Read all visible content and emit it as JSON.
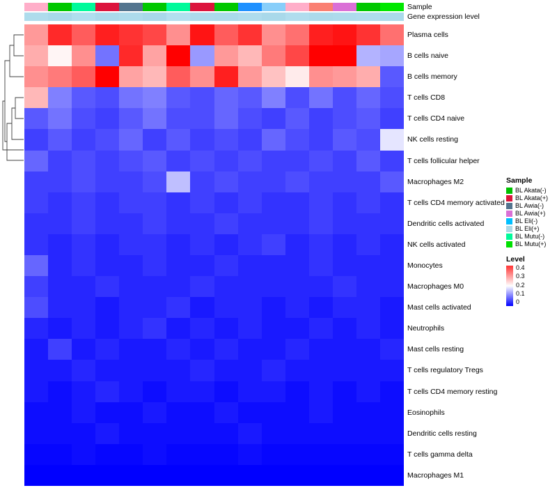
{
  "annotations": {
    "sample_label": "Sample",
    "expression_label": "Gene expression level"
  },
  "legends": {
    "sample": {
      "title": "Sample",
      "items": [
        {
          "label": "BL Akata(-)",
          "color": "#00C000"
        },
        {
          "label": "BL Akata(+)",
          "color": "#DC143C"
        },
        {
          "label": "BL Awia(-)",
          "color": "#53748E"
        },
        {
          "label": "BL Awia(+)",
          "color": "#DA70D6"
        },
        {
          "label": "BL Eli(-)",
          "color": "#00BFFF"
        },
        {
          "label": "BL Eli(+)",
          "color": "#ADD8E6"
        },
        {
          "label": "BL Mutu(-)",
          "color": "#00FA9A"
        },
        {
          "label": "BL Mutu(+)",
          "color": "#00E000"
        }
      ]
    },
    "level": {
      "title": "Level",
      "ticks": [
        "0.4",
        "0.3",
        "0.2",
        "0.1",
        "0"
      ],
      "max": 0.4,
      "min": 0
    }
  },
  "chart_data": {
    "type": "heatmap",
    "title": "",
    "legend_position": "right",
    "n_columns": 16,
    "rows": [
      "Plasma cells",
      "B cells naive",
      "B cells memory",
      "T cells CD8",
      "T cells CD4 naive",
      "NK cells resting",
      "T cells follicular helper",
      "Macrophages M2",
      "T cells CD4 memory activated",
      "Dendritic cells activated",
      "NK cells activated",
      "Monocytes",
      "Macrophages M0",
      "Mast cells activated",
      "Neutrophils",
      "Mast cells resting",
      "T cells regulatory Tregs",
      "T cells CD4 memory resting",
      "Eosinophils",
      "Dendritic cells resting",
      "T cells gamma delta",
      "Macrophages M1"
    ],
    "column_sample_colors": [
      "#FFAEC9",
      "#00C800",
      "#00FA9A",
      "#DC143C",
      "#53748E",
      "#00C800",
      "#00FA9A",
      "#DC143C",
      "#00C800",
      "#1E90FF",
      "#87CEFA",
      "#FFAEC9",
      "#FA8072",
      "#DA70D6",
      "#00C800",
      "#00E800"
    ],
    "column_expression_colors": [
      "#AEDCEC",
      "#A8D9EA",
      "#B0DEEE",
      "#AAD9EB",
      "#ADDBEC",
      "#A8D8EA",
      "#B2DFEF",
      "#ACDAEB",
      "#AADAEB",
      "#AEDCED",
      "#A9D9EA",
      "#B0DDEE",
      "#ABDAEB",
      "#ADDBEC",
      "#AFDCED",
      "#AADAEB"
    ],
    "color_scale": {
      "min_value": 0,
      "mid_value": 0.2,
      "max_value": 0.45,
      "min_color": "#0000FF",
      "mid_color": "#FFFFFF",
      "max_color": "#FF0000"
    },
    "values": [
      [
        0.3,
        0.41,
        0.36,
        0.42,
        0.4,
        0.38,
        0.31,
        0.43,
        0.36,
        0.4,
        0.31,
        0.34,
        0.42,
        0.43,
        0.4,
        0.34
      ],
      [
        0.28,
        0.21,
        0.31,
        0.09,
        0.41,
        0.29,
        0.47,
        0.12,
        0.3,
        0.27,
        0.33,
        0.38,
        0.47,
        0.47,
        0.14,
        0.13
      ],
      [
        0.31,
        0.33,
        0.36,
        0.46,
        0.29,
        0.27,
        0.36,
        0.31,
        0.42,
        0.3,
        0.26,
        0.22,
        0.31,
        0.3,
        0.28,
        0.07
      ],
      [
        0.27,
        0.1,
        0.07,
        0.06,
        0.09,
        0.1,
        0.07,
        0.06,
        0.08,
        0.07,
        0.1,
        0.06,
        0.09,
        0.06,
        0.08,
        0.06
      ],
      [
        0.07,
        0.09,
        0.06,
        0.05,
        0.07,
        0.09,
        0.06,
        0.06,
        0.08,
        0.06,
        0.05,
        0.07,
        0.05,
        0.06,
        0.07,
        0.05
      ],
      [
        0.05,
        0.07,
        0.05,
        0.06,
        0.08,
        0.05,
        0.07,
        0.05,
        0.06,
        0.05,
        0.08,
        0.06,
        0.05,
        0.07,
        0.06,
        0.18
      ],
      [
        0.08,
        0.05,
        0.06,
        0.05,
        0.06,
        0.07,
        0.05,
        0.06,
        0.05,
        0.06,
        0.05,
        0.05,
        0.06,
        0.05,
        0.07,
        0.05
      ],
      [
        0.05,
        0.05,
        0.06,
        0.05,
        0.05,
        0.06,
        0.15,
        0.05,
        0.06,
        0.05,
        0.05,
        0.06,
        0.05,
        0.05,
        0.05,
        0.07
      ],
      [
        0.05,
        0.04,
        0.05,
        0.04,
        0.05,
        0.05,
        0.04,
        0.05,
        0.04,
        0.05,
        0.04,
        0.04,
        0.05,
        0.04,
        0.05,
        0.04
      ],
      [
        0.04,
        0.04,
        0.05,
        0.04,
        0.04,
        0.05,
        0.04,
        0.04,
        0.05,
        0.04,
        0.04,
        0.04,
        0.05,
        0.04,
        0.04,
        0.04
      ],
      [
        0.04,
        0.03,
        0.04,
        0.03,
        0.04,
        0.04,
        0.03,
        0.04,
        0.03,
        0.04,
        0.05,
        0.03,
        0.04,
        0.03,
        0.04,
        0.03
      ],
      [
        0.08,
        0.03,
        0.04,
        0.03,
        0.03,
        0.04,
        0.03,
        0.03,
        0.04,
        0.03,
        0.03,
        0.03,
        0.04,
        0.03,
        0.03,
        0.03
      ],
      [
        0.05,
        0.03,
        0.03,
        0.04,
        0.03,
        0.03,
        0.03,
        0.04,
        0.03,
        0.03,
        0.03,
        0.03,
        0.03,
        0.04,
        0.03,
        0.03
      ],
      [
        0.06,
        0.03,
        0.03,
        0.02,
        0.03,
        0.03,
        0.04,
        0.02,
        0.03,
        0.03,
        0.02,
        0.03,
        0.02,
        0.03,
        0.03,
        0.02
      ],
      [
        0.03,
        0.02,
        0.03,
        0.02,
        0.03,
        0.04,
        0.02,
        0.03,
        0.02,
        0.03,
        0.02,
        0.02,
        0.03,
        0.02,
        0.03,
        0.02
      ],
      [
        0.02,
        0.05,
        0.02,
        0.03,
        0.02,
        0.02,
        0.03,
        0.02,
        0.03,
        0.02,
        0.02,
        0.03,
        0.02,
        0.02,
        0.02,
        0.03
      ],
      [
        0.02,
        0.02,
        0.03,
        0.02,
        0.02,
        0.02,
        0.02,
        0.03,
        0.02,
        0.02,
        0.03,
        0.02,
        0.02,
        0.02,
        0.02,
        0.02
      ],
      [
        0.02,
        0.01,
        0.02,
        0.03,
        0.02,
        0.01,
        0.02,
        0.02,
        0.01,
        0.02,
        0.02,
        0.01,
        0.02,
        0.01,
        0.02,
        0.01
      ],
      [
        0.01,
        0.01,
        0.02,
        0.01,
        0.01,
        0.02,
        0.01,
        0.01,
        0.02,
        0.01,
        0.01,
        0.01,
        0.02,
        0.01,
        0.01,
        0.01
      ],
      [
        0.01,
        0.01,
        0.01,
        0.02,
        0.01,
        0.01,
        0.01,
        0.01,
        0.01,
        0.02,
        0.01,
        0.01,
        0.01,
        0.01,
        0.01,
        0.01
      ],
      [
        0.005,
        0.005,
        0.01,
        0.005,
        0.005,
        0.01,
        0.005,
        0.005,
        0.005,
        0.01,
        0.005,
        0.005,
        0.005,
        0.005,
        0.005,
        0.005
      ],
      [
        0,
        0,
        0,
        0,
        0,
        0,
        0,
        0,
        0,
        0,
        0,
        0,
        0,
        0,
        0,
        0
      ]
    ]
  }
}
